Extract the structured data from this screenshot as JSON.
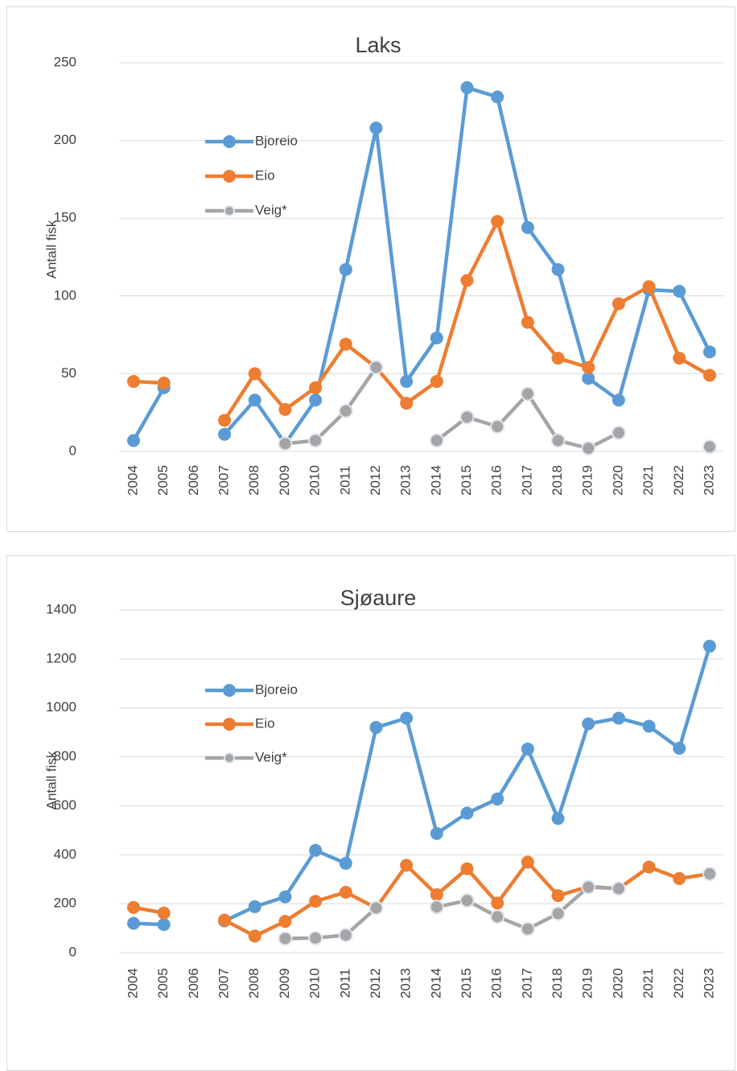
{
  "chart_data": [
    {
      "type": "line",
      "title": "Laks",
      "ylabel": "Antall fisk",
      "categories": [
        "2004",
        "2005",
        "2006",
        "2007",
        "2008",
        "2009",
        "2010",
        "2011",
        "2012",
        "2013",
        "2014",
        "2015",
        "2016",
        "2017",
        "2018",
        "2019",
        "2020",
        "2021",
        "2022",
        "2023"
      ],
      "series": [
        {
          "name": "Bjoreio",
          "color": "#5b9bd5",
          "values": [
            7,
            41,
            null,
            11,
            33,
            5,
            33,
            117,
            208,
            45,
            73,
            234,
            228,
            144,
            117,
            47,
            33,
            104,
            103,
            64
          ]
        },
        {
          "name": "Eio",
          "color": "#ed7d31",
          "values": [
            45,
            44,
            null,
            20,
            50,
            27,
            41,
            69,
            54,
            31,
            45,
            110,
            148,
            83,
            60,
            54,
            95,
            106,
            60,
            49
          ]
        },
        {
          "name": "Veig*",
          "color": "#a5a5a5",
          "values": [
            null,
            null,
            null,
            null,
            null,
            5,
            7,
            26,
            54,
            null,
            7,
            22,
            16,
            37,
            7,
            2,
            12,
            null,
            null,
            3
          ]
        }
      ],
      "ylim": [
        0,
        250
      ],
      "yticks": [
        0,
        50,
        100,
        150,
        200,
        250
      ],
      "grid": true
    },
    {
      "type": "line",
      "title": "Sjøaure",
      "ylabel": "Antall fisk",
      "categories": [
        "2004",
        "2005",
        "2006",
        "2007",
        "2008",
        "2009",
        "2010",
        "2011",
        "2012",
        "2013",
        "2014",
        "2015",
        "2016",
        "2017",
        "2018",
        "2019",
        "2020",
        "2021",
        "2022",
        "2023"
      ],
      "series": [
        {
          "name": "Bjoreio",
          "color": "#5b9bd5",
          "values": [
            120,
            115,
            null,
            130,
            188,
            228,
            418,
            365,
            920,
            958,
            487,
            570,
            628,
            832,
            548,
            935,
            958,
            925,
            835,
            1252
          ]
        },
        {
          "name": "Eio",
          "color": "#ed7d31",
          "values": [
            185,
            162,
            null,
            133,
            68,
            128,
            210,
            247,
            183,
            357,
            237,
            343,
            203,
            370,
            233,
            270,
            262,
            350,
            303,
            322
          ]
        },
        {
          "name": "Veig*",
          "color": "#a5a5a5",
          "values": [
            null,
            null,
            null,
            null,
            null,
            58,
            60,
            72,
            183,
            null,
            187,
            213,
            147,
            97,
            160,
            268,
            262,
            null,
            null,
            322
          ]
        }
      ],
      "ylim": [
        0,
        1400
      ],
      "yticks": [
        0,
        200,
        400,
        600,
        800,
        1000,
        1200,
        1400
      ],
      "grid": true
    }
  ]
}
